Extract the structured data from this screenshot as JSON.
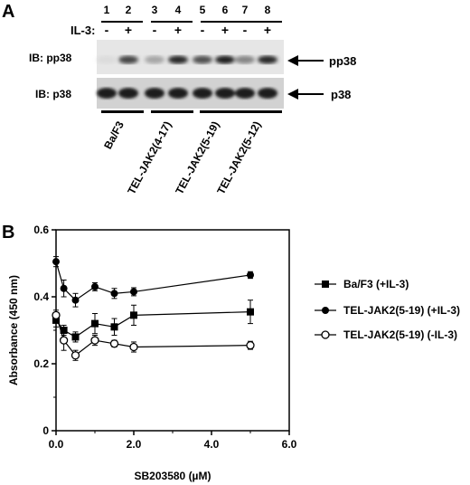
{
  "panel_a": {
    "letter": "A",
    "lane_numbers": [
      "1",
      "2",
      "3",
      "4",
      "5",
      "6",
      "7",
      "8"
    ],
    "il3_label": "IL-3:",
    "il3_signs": [
      "-",
      "+",
      "-",
      "+",
      "-",
      "+",
      "-",
      "+"
    ],
    "blot_top_label": "IB:  pp38",
    "blot_bottom_label": "IB:  p38",
    "arrow_top_label": "pp38",
    "arrow_bottom_label": "p38",
    "groups": [
      "Ba/F3",
      "TEL-JAK2(4-17)",
      "TEL-JAK2(5-19)",
      "TEL-JAK2(5-12)"
    ],
    "pp38_band_intensity": [
      0.05,
      0.75,
      0.3,
      0.9,
      0.7,
      0.95,
      0.45,
      0.9
    ],
    "p38_band_intensity": [
      0.95,
      0.95,
      0.95,
      0.95,
      0.95,
      0.95,
      0.95,
      0.95
    ]
  },
  "panel_b": {
    "letter": "B"
  },
  "chart_data": {
    "type": "line",
    "xlabel": "SB203580 (µM)",
    "ylabel": "Absorbance (450 nm)",
    "xlim": [
      0,
      6
    ],
    "ylim": [
      0,
      0.6
    ],
    "x_ticks": [
      "0.0",
      "2.0",
      "4.0",
      "6.0"
    ],
    "y_ticks": [
      "0",
      "0.2",
      "0.4",
      "0.6"
    ],
    "grid": false,
    "legend_position": "right",
    "series": [
      {
        "name": "Ba/F3 (+IL-3)",
        "marker": "filled-square",
        "x": [
          0,
          0.2,
          0.5,
          1.0,
          1.5,
          2.0,
          5.0
        ],
        "y": [
          0.33,
          0.3,
          0.28,
          0.32,
          0.31,
          0.345,
          0.355
        ],
        "err": [
          0.02,
          0.015,
          0.015,
          0.03,
          0.025,
          0.03,
          0.035
        ]
      },
      {
        "name": "TEL-JAK2(5-19) (+IL-3)",
        "marker": "filled-circle",
        "x": [
          0,
          0.2,
          0.5,
          1.0,
          1.5,
          2.0,
          5.0
        ],
        "y": [
          0.505,
          0.425,
          0.39,
          0.43,
          0.41,
          0.415,
          0.465
        ],
        "err": [
          0.015,
          0.025,
          0.02,
          0.012,
          0.015,
          0.012,
          0.01
        ]
      },
      {
        "name": "TEL-JAK2(5-19) (-IL-3)",
        "marker": "open-circle",
        "x": [
          0,
          0.2,
          0.5,
          1.0,
          1.5,
          2.0,
          5.0
        ],
        "y": [
          0.345,
          0.27,
          0.225,
          0.27,
          0.26,
          0.25,
          0.255
        ],
        "err": [
          0.015,
          0.03,
          0.015,
          0.015,
          0.01,
          0.015,
          0.012
        ]
      }
    ]
  }
}
